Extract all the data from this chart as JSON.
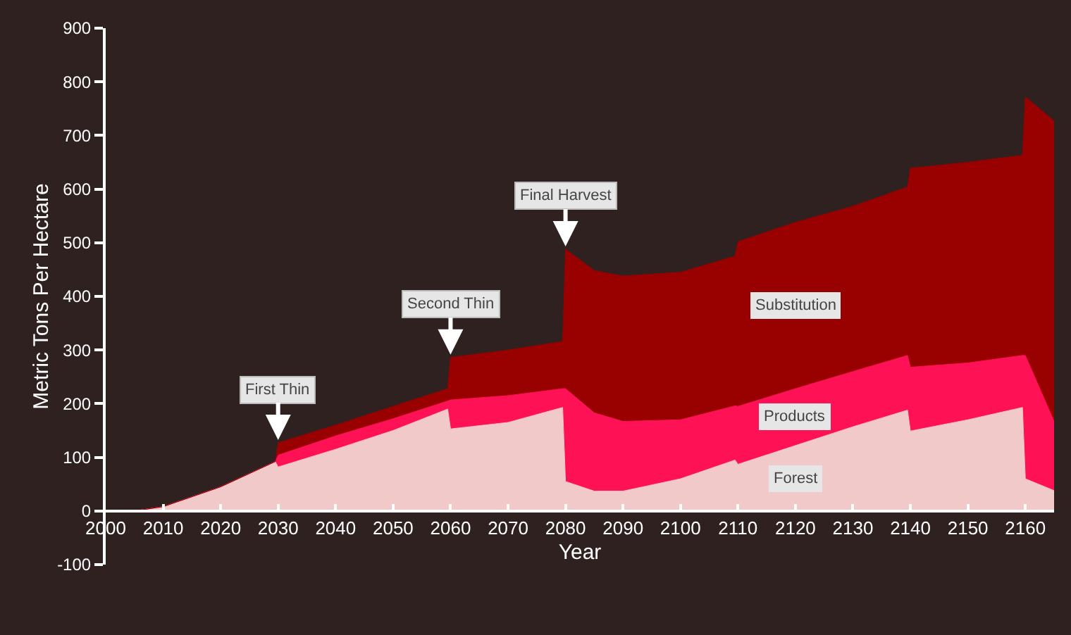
{
  "chart_data": {
    "type": "area",
    "stacked": true,
    "xlabel": "Year",
    "ylabel": "Metric Tons Per Hectare",
    "x": [
      2000,
      2005,
      2010,
      2020,
      2029.5,
      2030,
      2040,
      2050,
      2059.5,
      2060,
      2070,
      2079.5,
      2080,
      2085,
      2090,
      2100,
      2109.5,
      2110,
      2120,
      2130,
      2139.5,
      2140,
      2150,
      2159.5,
      2160,
      2165
    ],
    "series": [
      {
        "name": "Forest",
        "color": "#f2c9c9",
        "values": [
          0,
          0,
          8,
          45,
          92,
          82,
          115,
          150,
          190,
          153,
          165,
          193,
          55,
          37,
          37,
          60,
          95,
          87,
          122,
          157,
          188,
          149,
          170,
          193,
          60,
          38
        ]
      },
      {
        "name": "Products",
        "color": "#ff1155",
        "values": [
          0,
          0,
          0,
          0,
          0,
          22,
          25,
          22,
          15,
          54,
          50,
          35,
          173,
          146,
          130,
          110,
          101,
          108,
          106,
          103,
          102,
          119,
          106,
          97,
          230,
          129
        ]
      },
      {
        "name": "Substitution",
        "color": "#990000",
        "values": [
          0,
          0,
          0,
          0,
          0,
          23,
          20,
          23,
          23,
          79,
          85,
          88,
          260,
          265,
          271,
          275,
          279,
          307,
          310,
          308,
          314,
          371,
          374,
          373,
          482,
          560
        ]
      }
    ],
    "xlim": [
      2000,
      2165
    ],
    "xticks": [
      2000,
      2010,
      2020,
      2030,
      2040,
      2050,
      2060,
      2070,
      2080,
      2090,
      2100,
      2110,
      2120,
      2130,
      2140,
      2150,
      2160
    ],
    "ylim": [
      -100,
      900
    ],
    "yticks": [
      -100,
      0,
      100,
      200,
      300,
      400,
      500,
      600,
      700,
      800,
      900
    ],
    "legend": false,
    "annotations": [
      {
        "text": "First Thin",
        "x": 2030,
        "y": 127
      },
      {
        "text": "Second Thin",
        "x": 2060,
        "y": 286
      },
      {
        "text": "Final Harvest",
        "x": 2080,
        "y": 488
      }
    ]
  }
}
